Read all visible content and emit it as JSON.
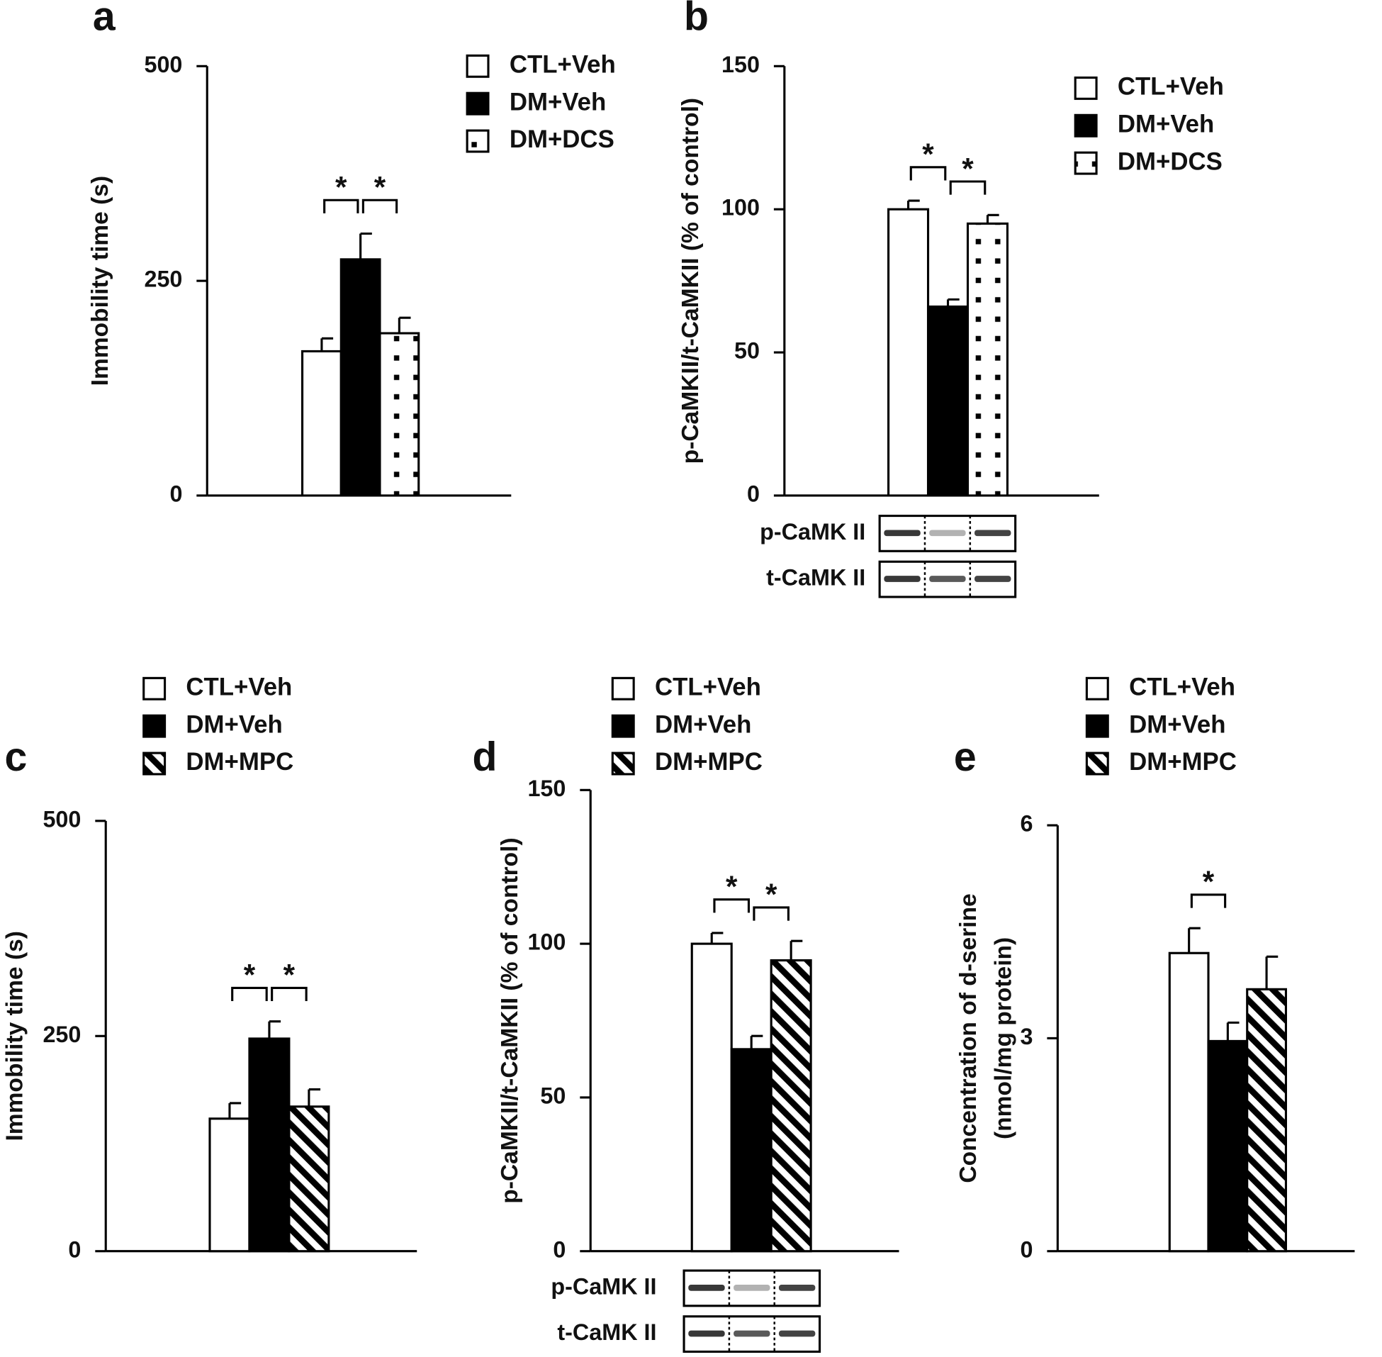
{
  "chart_data": [
    {
      "type": "bar",
      "panel": "a",
      "ylabel": [
        "Immobility time (s)"
      ],
      "ylim": [
        0,
        500
      ],
      "yticks": [
        0,
        250,
        500
      ],
      "series": [
        {
          "name": "CTL+Veh",
          "pattern": "open",
          "values": [
            168
          ],
          "errors": [
            15
          ]
        },
        {
          "name": "DM+Veh",
          "pattern": "solid",
          "values": [
            275
          ],
          "errors": [
            30
          ]
        },
        {
          "name": "DM+DCS",
          "pattern": "dots",
          "values": [
            189
          ],
          "errors": [
            18
          ]
        }
      ],
      "significance": [
        {
          "pair": [
            0,
            1
          ],
          "label": "*"
        },
        {
          "pair": [
            1,
            2
          ],
          "label": "*"
        }
      ]
    },
    {
      "type": "bar",
      "panel": "b",
      "ylabel": [
        "p-CaMKII/t-CaMKII (% of control)"
      ],
      "ylim": [
        0,
        150
      ],
      "yticks": [
        0,
        50,
        100,
        150
      ],
      "series": [
        {
          "name": "CTL+Veh",
          "pattern": "open",
          "values": [
            100
          ],
          "errors": [
            3
          ]
        },
        {
          "name": "DM+Veh",
          "pattern": "solid",
          "values": [
            66
          ],
          "errors": [
            2.5
          ]
        },
        {
          "name": "DM+DCS",
          "pattern": "dots",
          "values": [
            95
          ],
          "errors": [
            3
          ]
        }
      ],
      "significance": [
        {
          "pair": [
            0,
            1
          ],
          "label": "*"
        },
        {
          "pair": [
            1,
            2
          ],
          "label": "*"
        }
      ],
      "blot_labels": [
        "p-CaMK II",
        "t-CaMK II"
      ]
    },
    {
      "type": "bar",
      "panel": "c",
      "ylabel": [
        "Immobility time (s)"
      ],
      "ylim": [
        0,
        500
      ],
      "yticks": [
        0,
        250,
        500
      ],
      "series": [
        {
          "name": "CTL+Veh",
          "pattern": "open",
          "values": [
            154
          ],
          "errors": [
            18
          ]
        },
        {
          "name": "DM+Veh",
          "pattern": "solid",
          "values": [
            247
          ],
          "errors": [
            20
          ]
        },
        {
          "name": "DM+MPC",
          "pattern": "stripes",
          "values": [
            168
          ],
          "errors": [
            20
          ]
        }
      ],
      "significance": [
        {
          "pair": [
            0,
            1
          ],
          "label": "*"
        },
        {
          "pair": [
            1,
            2
          ],
          "label": "*"
        }
      ]
    },
    {
      "type": "bar",
      "panel": "d",
      "ylabel": [
        "p-CaMKII/t-CaMKII (% of control)"
      ],
      "ylim": [
        0,
        150
      ],
      "yticks": [
        0,
        50,
        100,
        150
      ],
      "series": [
        {
          "name": "CTL+Veh",
          "pattern": "open",
          "values": [
            100
          ],
          "errors": [
            3.5
          ]
        },
        {
          "name": "DM+Veh",
          "pattern": "solid",
          "values": [
            65.7
          ],
          "errors": [
            4.3
          ]
        },
        {
          "name": "DM+MPC",
          "pattern": "stripes",
          "values": [
            94.6
          ],
          "errors": [
            6.3
          ]
        }
      ],
      "significance": [
        {
          "pair": [
            0,
            1
          ],
          "label": "*"
        },
        {
          "pair": [
            1,
            2
          ],
          "label": "*"
        }
      ],
      "blot_labels": [
        "p-CaMK II",
        "t-CaMK II"
      ]
    },
    {
      "type": "bar",
      "panel": "e",
      "ylabel": [
        "Concentration of d-serine",
        "(nmol/mg protein)"
      ],
      "ylim": [
        0,
        6
      ],
      "yticks": [
        0,
        3,
        6
      ],
      "series": [
        {
          "name": "CTL+Veh",
          "pattern": "open",
          "values": [
            4.2
          ],
          "errors": [
            0.35
          ]
        },
        {
          "name": "DM+Veh",
          "pattern": "solid",
          "values": [
            2.96
          ],
          "errors": [
            0.26
          ]
        },
        {
          "name": "DM+MPC",
          "pattern": "stripes",
          "values": [
            3.69
          ],
          "errors": [
            0.46
          ]
        }
      ],
      "significance": [
        {
          "pair": [
            0,
            1
          ],
          "label": "*"
        }
      ]
    }
  ]
}
